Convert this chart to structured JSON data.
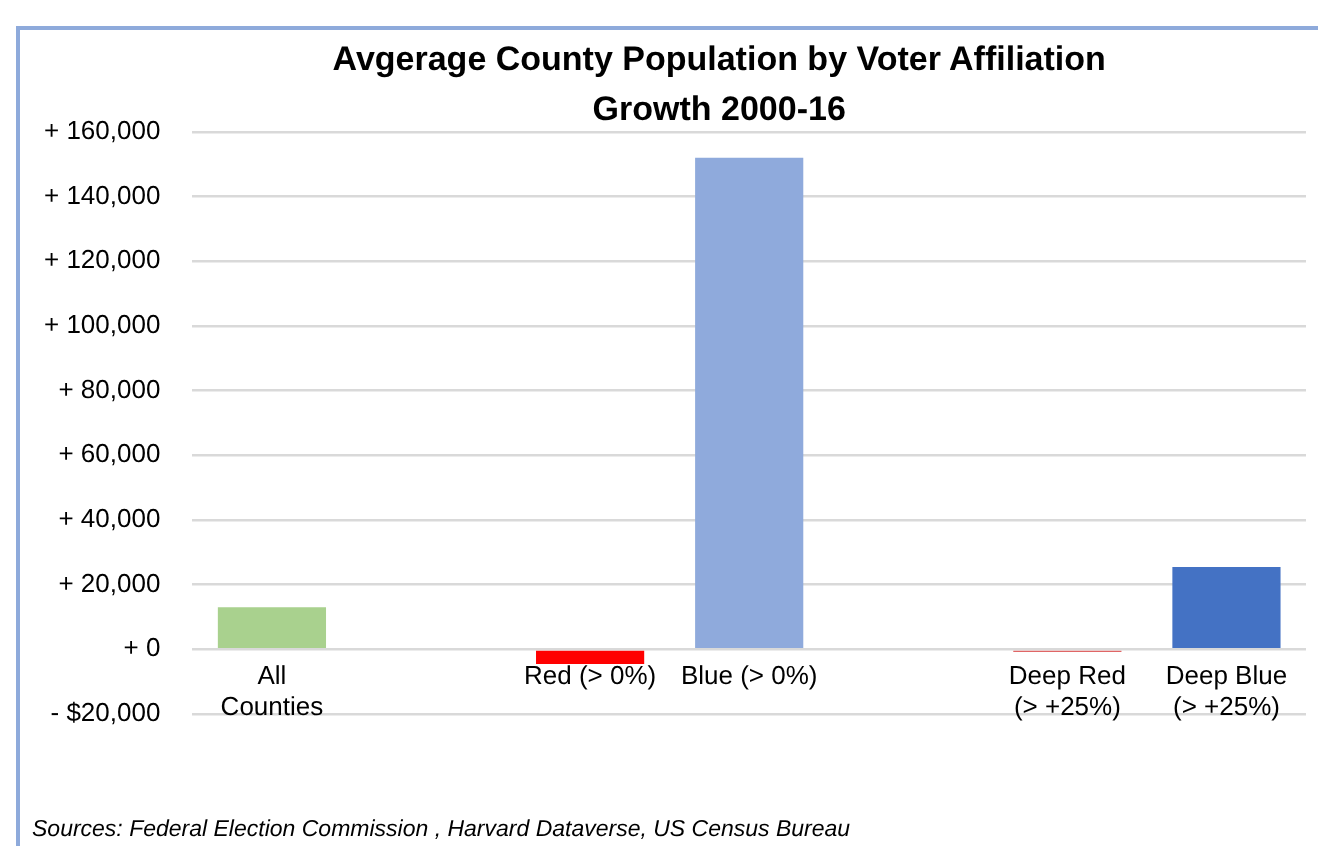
{
  "chart_data": {
    "type": "bar",
    "title": "Avgerage County Population by Voter Affiliation Growth 2000-16",
    "categories": [
      "All\nCounties",
      null,
      "Red (> 0%)",
      "Blue (> 0%)",
      null,
      "Deep Red\n(> +25%)",
      "Deep Blue\n(> +25%)"
    ],
    "values": [
      13000,
      null,
      -4500,
      152000,
      null,
      -800,
      25500
    ],
    "colors": [
      "#a9d18e",
      "#a9d18e",
      "#ff0000",
      "#8faadc",
      "#8faadc",
      "#e06666",
      "#4472c4"
    ],
    "ylim": [
      -20000,
      160000
    ],
    "yticks": [
      {
        "value": -20000,
        "label": "- $20,000"
      },
      {
        "value": 0,
        "label": "+ 0"
      },
      {
        "value": 20000,
        "label": "+ 20,000"
      },
      {
        "value": 40000,
        "label": "+ 40,000"
      },
      {
        "value": 60000,
        "label": "+ 60,000"
      },
      {
        "value": 80000,
        "label": "+ 80,000"
      },
      {
        "value": 100000,
        "label": "+ 100,000"
      },
      {
        "value": 120000,
        "label": "+ 120,000"
      },
      {
        "value": 140000,
        "label": "+ 140,000"
      },
      {
        "value": 160000,
        "label": "+ 160,000"
      }
    ],
    "grid": "y",
    "annotations": [
      "Sources: Federal Election Commission , Harvard Dataverse, US Census Bureau"
    ]
  }
}
